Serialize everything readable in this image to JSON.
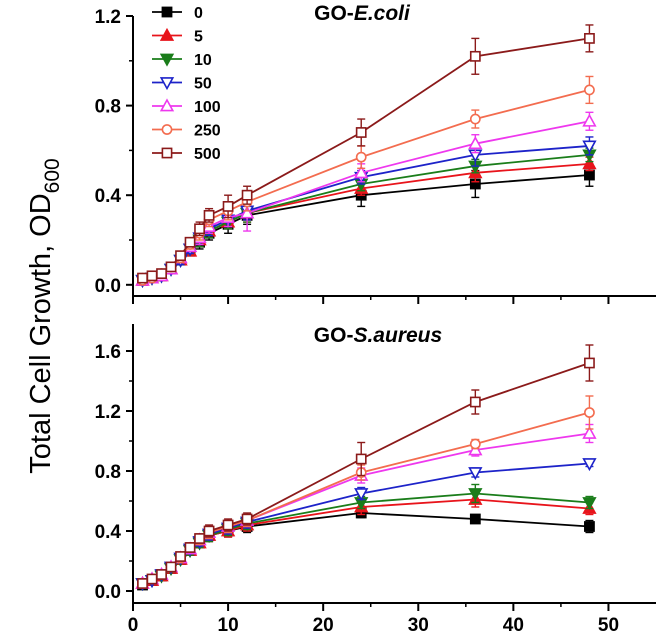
{
  "figure": {
    "ylabel_main": "Total Cell Growth, OD",
    "ylabel_sub": "600"
  },
  "chart_data": [
    {
      "type": "line",
      "title_prefix": "GO-",
      "title_italic": "E.coli",
      "xlabel": "",
      "ylabel": "Total Cell Growth, OD600",
      "xlim": [
        0,
        55
      ],
      "ylim": [
        -0.05,
        1.2
      ],
      "yticks": [
        0.0,
        0.4,
        0.8,
        1.2
      ],
      "ytick_labels": [
        "0.0",
        "0.4",
        "0.8",
        "1.2"
      ],
      "xticks": [
        0,
        10,
        20,
        30,
        40,
        50
      ],
      "xtick_labels": [
        "",
        "",
        "",
        "",
        "",
        ""
      ],
      "legend_position": "top-left",
      "x": [
        1,
        2,
        3,
        4,
        5,
        6,
        7,
        8,
        10,
        12,
        24,
        36,
        48
      ],
      "series": [
        {
          "name": "0",
          "color": "#000000",
          "marker": "square-filled",
          "values": [
            0.02,
            0.03,
            0.04,
            0.07,
            0.11,
            0.15,
            0.19,
            0.23,
            0.27,
            0.31,
            0.4,
            0.45,
            0.49
          ],
          "errors": [
            0.01,
            0.01,
            0.01,
            0.01,
            0.02,
            0.02,
            0.03,
            0.03,
            0.04,
            0.04,
            0.05,
            0.06,
            0.05
          ]
        },
        {
          "name": "5",
          "color": "#e8141b",
          "marker": "triangle-up-filled",
          "values": [
            0.02,
            0.03,
            0.04,
            0.07,
            0.11,
            0.15,
            0.2,
            0.24,
            0.28,
            0.32,
            0.43,
            0.5,
            0.54
          ],
          "errors": [
            0.01,
            0.01,
            0.01,
            0.01,
            0.02,
            0.02,
            0.03,
            0.03,
            0.03,
            0.04,
            0.03,
            0.04,
            0.03
          ]
        },
        {
          "name": "10",
          "color": "#1a7d1a",
          "marker": "triangle-down-filled",
          "values": [
            0.02,
            0.03,
            0.04,
            0.07,
            0.11,
            0.16,
            0.2,
            0.24,
            0.28,
            0.32,
            0.45,
            0.53,
            0.58
          ],
          "errors": [
            0.01,
            0.01,
            0.01,
            0.01,
            0.02,
            0.02,
            0.03,
            0.03,
            0.03,
            0.04,
            0.03,
            0.03,
            0.03
          ]
        },
        {
          "name": "50",
          "color": "#1d23c9",
          "marker": "triangle-down-open",
          "values": [
            0.02,
            0.03,
            0.04,
            0.07,
            0.11,
            0.16,
            0.21,
            0.25,
            0.29,
            0.33,
            0.48,
            0.58,
            0.62
          ],
          "errors": [
            0.01,
            0.01,
            0.01,
            0.01,
            0.02,
            0.02,
            0.03,
            0.03,
            0.03,
            0.04,
            0.03,
            0.05,
            0.04
          ]
        },
        {
          "name": "100",
          "color": "#ee38ee",
          "marker": "triangle-up-open",
          "values": [
            0.02,
            0.03,
            0.04,
            0.07,
            0.12,
            0.17,
            0.21,
            0.26,
            0.3,
            0.32,
            0.5,
            0.63,
            0.73
          ],
          "errors": [
            0.01,
            0.01,
            0.01,
            0.01,
            0.02,
            0.02,
            0.03,
            0.03,
            0.04,
            0.08,
            0.04,
            0.04,
            0.04
          ]
        },
        {
          "name": "250",
          "color": "#f36c4f",
          "marker": "circle-open",
          "values": [
            0.02,
            0.03,
            0.05,
            0.08,
            0.12,
            0.18,
            0.23,
            0.29,
            0.33,
            0.37,
            0.57,
            0.74,
            0.87
          ],
          "errors": [
            0.01,
            0.01,
            0.01,
            0.01,
            0.02,
            0.02,
            0.03,
            0.03,
            0.04,
            0.04,
            0.05,
            0.04,
            0.06
          ]
        },
        {
          "name": "500",
          "color": "#8b1a1a",
          "marker": "square-open",
          "values": [
            0.03,
            0.04,
            0.05,
            0.08,
            0.13,
            0.19,
            0.25,
            0.31,
            0.35,
            0.4,
            0.68,
            1.02,
            1.1
          ],
          "errors": [
            0.01,
            0.01,
            0.01,
            0.01,
            0.02,
            0.02,
            0.03,
            0.03,
            0.05,
            0.04,
            0.06,
            0.08,
            0.06
          ]
        }
      ]
    },
    {
      "type": "line",
      "title_prefix": "GO-",
      "title_italic": "S.aureus",
      "xlabel": "",
      "ylabel": "Total Cell Growth, OD600",
      "xlim": [
        0,
        55
      ],
      "ylim": [
        -0.08,
        1.78
      ],
      "yticks": [
        0.0,
        0.4,
        0.8,
        1.2,
        1.6
      ],
      "ytick_labels": [
        "0.0",
        "0.4",
        "0.8",
        "1.2",
        "1.6"
      ],
      "xticks": [
        0,
        10,
        20,
        30,
        40,
        50
      ],
      "xtick_labels": [
        "0",
        "10",
        "20",
        "30",
        "40",
        "50"
      ],
      "x": [
        1,
        2,
        3,
        4,
        5,
        6,
        7,
        8,
        10,
        12,
        24,
        36,
        48
      ],
      "series": [
        {
          "name": "0",
          "color": "#000000",
          "marker": "square-filled",
          "values": [
            0.04,
            0.07,
            0.1,
            0.15,
            0.21,
            0.27,
            0.32,
            0.37,
            0.4,
            0.43,
            0.52,
            0.48,
            0.43
          ],
          "errors": [
            0.01,
            0.01,
            0.02,
            0.02,
            0.02,
            0.03,
            0.03,
            0.04,
            0.04,
            0.04,
            0.03,
            0.02,
            0.04
          ]
        },
        {
          "name": "5",
          "color": "#e8141b",
          "marker": "triangle-up-filled",
          "values": [
            0.05,
            0.07,
            0.1,
            0.15,
            0.21,
            0.27,
            0.32,
            0.37,
            0.4,
            0.44,
            0.56,
            0.61,
            0.55
          ],
          "errors": [
            0.01,
            0.01,
            0.02,
            0.02,
            0.02,
            0.03,
            0.03,
            0.04,
            0.04,
            0.04,
            0.05,
            0.05,
            0.04
          ]
        },
        {
          "name": "10",
          "color": "#1a7d1a",
          "marker": "triangle-down-filled",
          "values": [
            0.05,
            0.07,
            0.1,
            0.15,
            0.21,
            0.27,
            0.32,
            0.37,
            0.41,
            0.45,
            0.59,
            0.65,
            0.59
          ],
          "errors": [
            0.01,
            0.01,
            0.02,
            0.02,
            0.02,
            0.03,
            0.03,
            0.04,
            0.04,
            0.04,
            0.04,
            0.06,
            0.04
          ]
        },
        {
          "name": "50",
          "color": "#1d23c9",
          "marker": "triangle-down-open",
          "values": [
            0.05,
            0.07,
            0.11,
            0.16,
            0.22,
            0.28,
            0.33,
            0.38,
            0.42,
            0.46,
            0.65,
            0.79,
            0.85
          ],
          "errors": [
            0.01,
            0.01,
            0.02,
            0.02,
            0.02,
            0.03,
            0.03,
            0.04,
            0.04,
            0.04,
            0.04,
            0.03,
            0.02
          ]
        },
        {
          "name": "100",
          "color": "#ee38ee",
          "marker": "triangle-up-open",
          "values": [
            0.05,
            0.08,
            0.11,
            0.16,
            0.22,
            0.28,
            0.34,
            0.39,
            0.43,
            0.47,
            0.77,
            0.94,
            1.05
          ],
          "errors": [
            0.01,
            0.01,
            0.02,
            0.02,
            0.02,
            0.03,
            0.03,
            0.04,
            0.04,
            0.04,
            0.05,
            0.04,
            0.06
          ]
        },
        {
          "name": "250",
          "color": "#f36c4f",
          "marker": "circle-open",
          "values": [
            0.05,
            0.08,
            0.11,
            0.16,
            0.22,
            0.29,
            0.34,
            0.39,
            0.43,
            0.47,
            0.79,
            0.98,
            1.19
          ],
          "errors": [
            0.01,
            0.01,
            0.02,
            0.02,
            0.02,
            0.03,
            0.03,
            0.04,
            0.04,
            0.04,
            0.05,
            0.03,
            0.11
          ]
        },
        {
          "name": "500",
          "color": "#8b1a1a",
          "marker": "square-open",
          "values": [
            0.05,
            0.08,
            0.11,
            0.16,
            0.23,
            0.29,
            0.35,
            0.4,
            0.44,
            0.48,
            0.88,
            1.26,
            1.52
          ],
          "errors": [
            0.01,
            0.01,
            0.02,
            0.02,
            0.02,
            0.03,
            0.03,
            0.04,
            0.04,
            0.04,
            0.11,
            0.08,
            0.12
          ]
        }
      ]
    }
  ]
}
